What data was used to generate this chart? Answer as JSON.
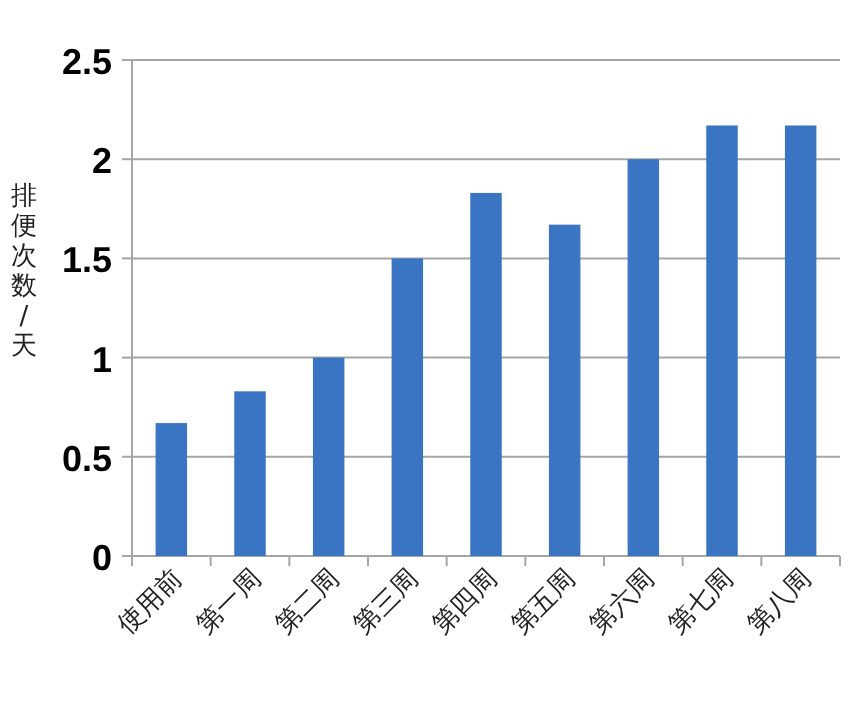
{
  "chart_data": {
    "type": "bar",
    "ylabel": "排便次数/天",
    "categories": [
      "使用前",
      "第一周",
      "第二周",
      "第三周",
      "第四周",
      "第五周",
      "第六周",
      "第七周",
      "第八周"
    ],
    "values": [
      0.67,
      0.83,
      1.0,
      1.5,
      1.83,
      1.67,
      2.0,
      2.17,
      2.17
    ],
    "color": "#3a75c4",
    "ylim": [
      0,
      2.5
    ],
    "yticks": [
      0,
      0.5,
      1,
      1.5,
      2,
      2.5
    ],
    "grid": "y"
  }
}
